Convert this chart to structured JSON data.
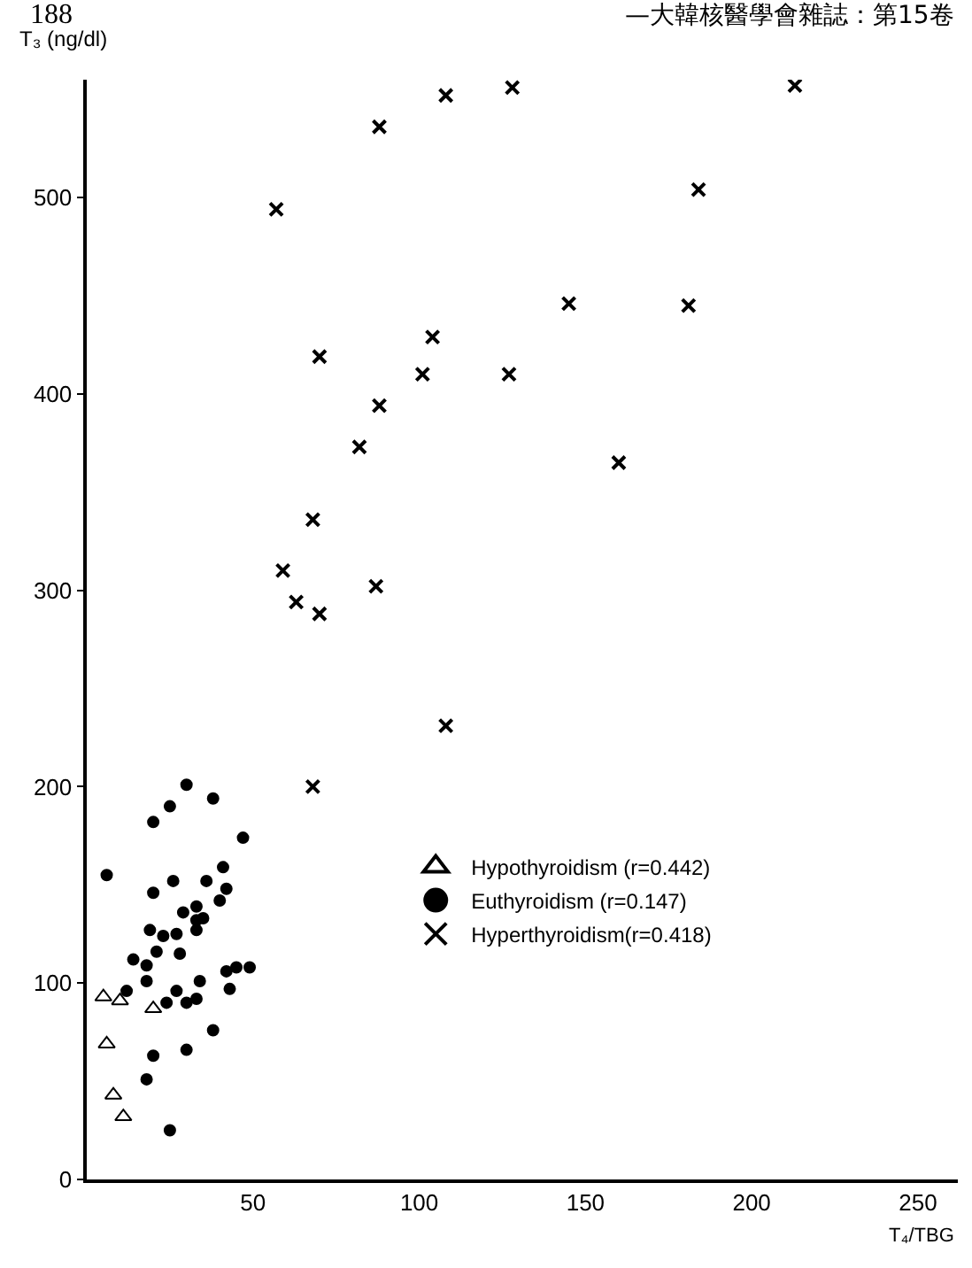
{
  "chart_data": {
    "type": "scatter",
    "xlabel": "T₄/TBG",
    "ylabel": "T₃ (ng/dl)",
    "annotations": [
      "188",
      "—大韓核醫學會雜誌：第15卷"
    ],
    "xlim": [
      0,
      262
    ],
    "xticks": [
      50,
      100,
      150,
      200,
      250
    ],
    "ylim": [
      0,
      560
    ],
    "yticks": [
      0,
      100,
      200,
      300,
      400,
      500
    ],
    "grid": false,
    "legend": "bottom right",
    "series": [
      {
        "name": "Hypothyroidism (r=0.442)",
        "color": "#000000",
        "marker": "triangle-open",
        "x": [
          5,
          10,
          20,
          6,
          8,
          11
        ],
        "values": [
          93,
          91,
          87,
          69,
          43,
          32
        ]
      },
      {
        "name": "Euthyroidism (r=0.147)",
        "color": "#000000",
        "marker": "circle",
        "x": [
          6,
          30,
          25,
          20,
          38,
          47,
          20,
          26,
          36,
          41,
          42,
          40,
          33,
          29,
          35,
          33,
          33,
          19,
          23,
          27,
          21,
          28,
          14,
          18,
          18,
          12,
          34,
          42,
          45,
          49,
          27,
          43,
          24,
          30,
          33,
          38,
          20,
          30,
          18,
          25
        ],
        "values": [
          155,
          201,
          190,
          182,
          194,
          174,
          146,
          152,
          152,
          159,
          148,
          142,
          139,
          136,
          133,
          132,
          127,
          127,
          124,
          125,
          116,
          115,
          112,
          109,
          101,
          96,
          101,
          106,
          108,
          108,
          96,
          97,
          90,
          90,
          92,
          76,
          63,
          66,
          51,
          25
        ]
      },
      {
        "name": "Hyperthyroidism(r=0.418)",
        "color": "#000000",
        "marker": "cross",
        "x": [
          57,
          88,
          108,
          128,
          213,
          184,
          145,
          181,
          104,
          70,
          101,
          127,
          88,
          82,
          160,
          68,
          59,
          63,
          70,
          87,
          108,
          68
        ],
        "values": [
          494,
          536,
          552,
          556,
          557,
          504,
          446,
          445,
          429,
          419,
          410,
          410,
          394,
          373,
          365,
          336,
          310,
          294,
          288,
          302,
          231,
          200
        ]
      }
    ]
  }
}
